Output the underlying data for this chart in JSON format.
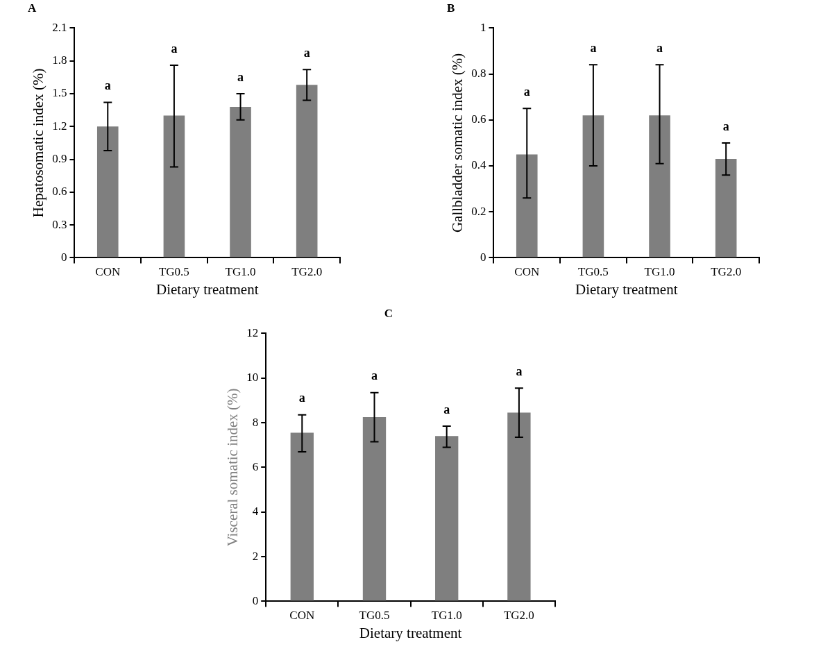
{
  "chart_data": [
    {
      "type": "bar",
      "title": "A",
      "xlabel": "Dietary treatment",
      "ylabel": "Hepatosomatic index (%)",
      "categories": [
        "CON",
        "TG0.5",
        "TG1.0",
        "TG2.0"
      ],
      "values": [
        1.2,
        1.3,
        1.38,
        1.58
      ],
      "errors": [
        [
          0.98,
          1.42
        ],
        [
          0.83,
          1.76
        ],
        [
          1.26,
          1.5
        ],
        [
          1.44,
          1.72
        ]
      ],
      "color": "#7f7f7f",
      "ylim": [
        0,
        2.1
      ],
      "yticks": [
        0,
        0.3,
        0.6,
        0.9,
        1.2,
        1.5,
        1.8,
        2.1
      ],
      "grid": false,
      "legend": false,
      "annotations": [
        "a",
        "a",
        "a",
        "a"
      ]
    },
    {
      "type": "bar",
      "title": "B",
      "xlabel": "Dietary treatment",
      "ylabel": "Gallbladder somatic index (%)",
      "categories": [
        "CON",
        "TG0.5",
        "TG1.0",
        "TG2.0"
      ],
      "values": [
        0.45,
        0.62,
        0.62,
        0.43
      ],
      "errors": [
        [
          0.26,
          0.65
        ],
        [
          0.4,
          0.84
        ],
        [
          0.41,
          0.84
        ],
        [
          0.36,
          0.5
        ]
      ],
      "color": "#7f7f7f",
      "ylim": [
        0,
        1
      ],
      "yticks": [
        0,
        0.2,
        0.4,
        0.6,
        0.8,
        1
      ],
      "grid": false,
      "legend": false,
      "annotations": [
        "a",
        "a",
        "a",
        "a"
      ]
    },
    {
      "type": "bar",
      "title": "C",
      "xlabel": "Dietary treatment",
      "ylabel": "Visceral somatic index (%)",
      "categories": [
        "CON",
        "TG0.5",
        "TG1.0",
        "TG2.0"
      ],
      "values": [
        7.55,
        8.25,
        7.4,
        8.45
      ],
      "errors": [
        [
          6.7,
          8.35
        ],
        [
          7.15,
          9.35
        ],
        [
          6.9,
          7.85
        ],
        [
          7.35,
          9.55
        ]
      ],
      "color": "#7f7f7f",
      "ylim": [
        0,
        12
      ],
      "yticks": [
        0,
        2,
        4,
        6,
        8,
        10,
        12
      ],
      "grid": false,
      "legend": false,
      "annotations": [
        "a",
        "a",
        "a",
        "a"
      ]
    }
  ]
}
